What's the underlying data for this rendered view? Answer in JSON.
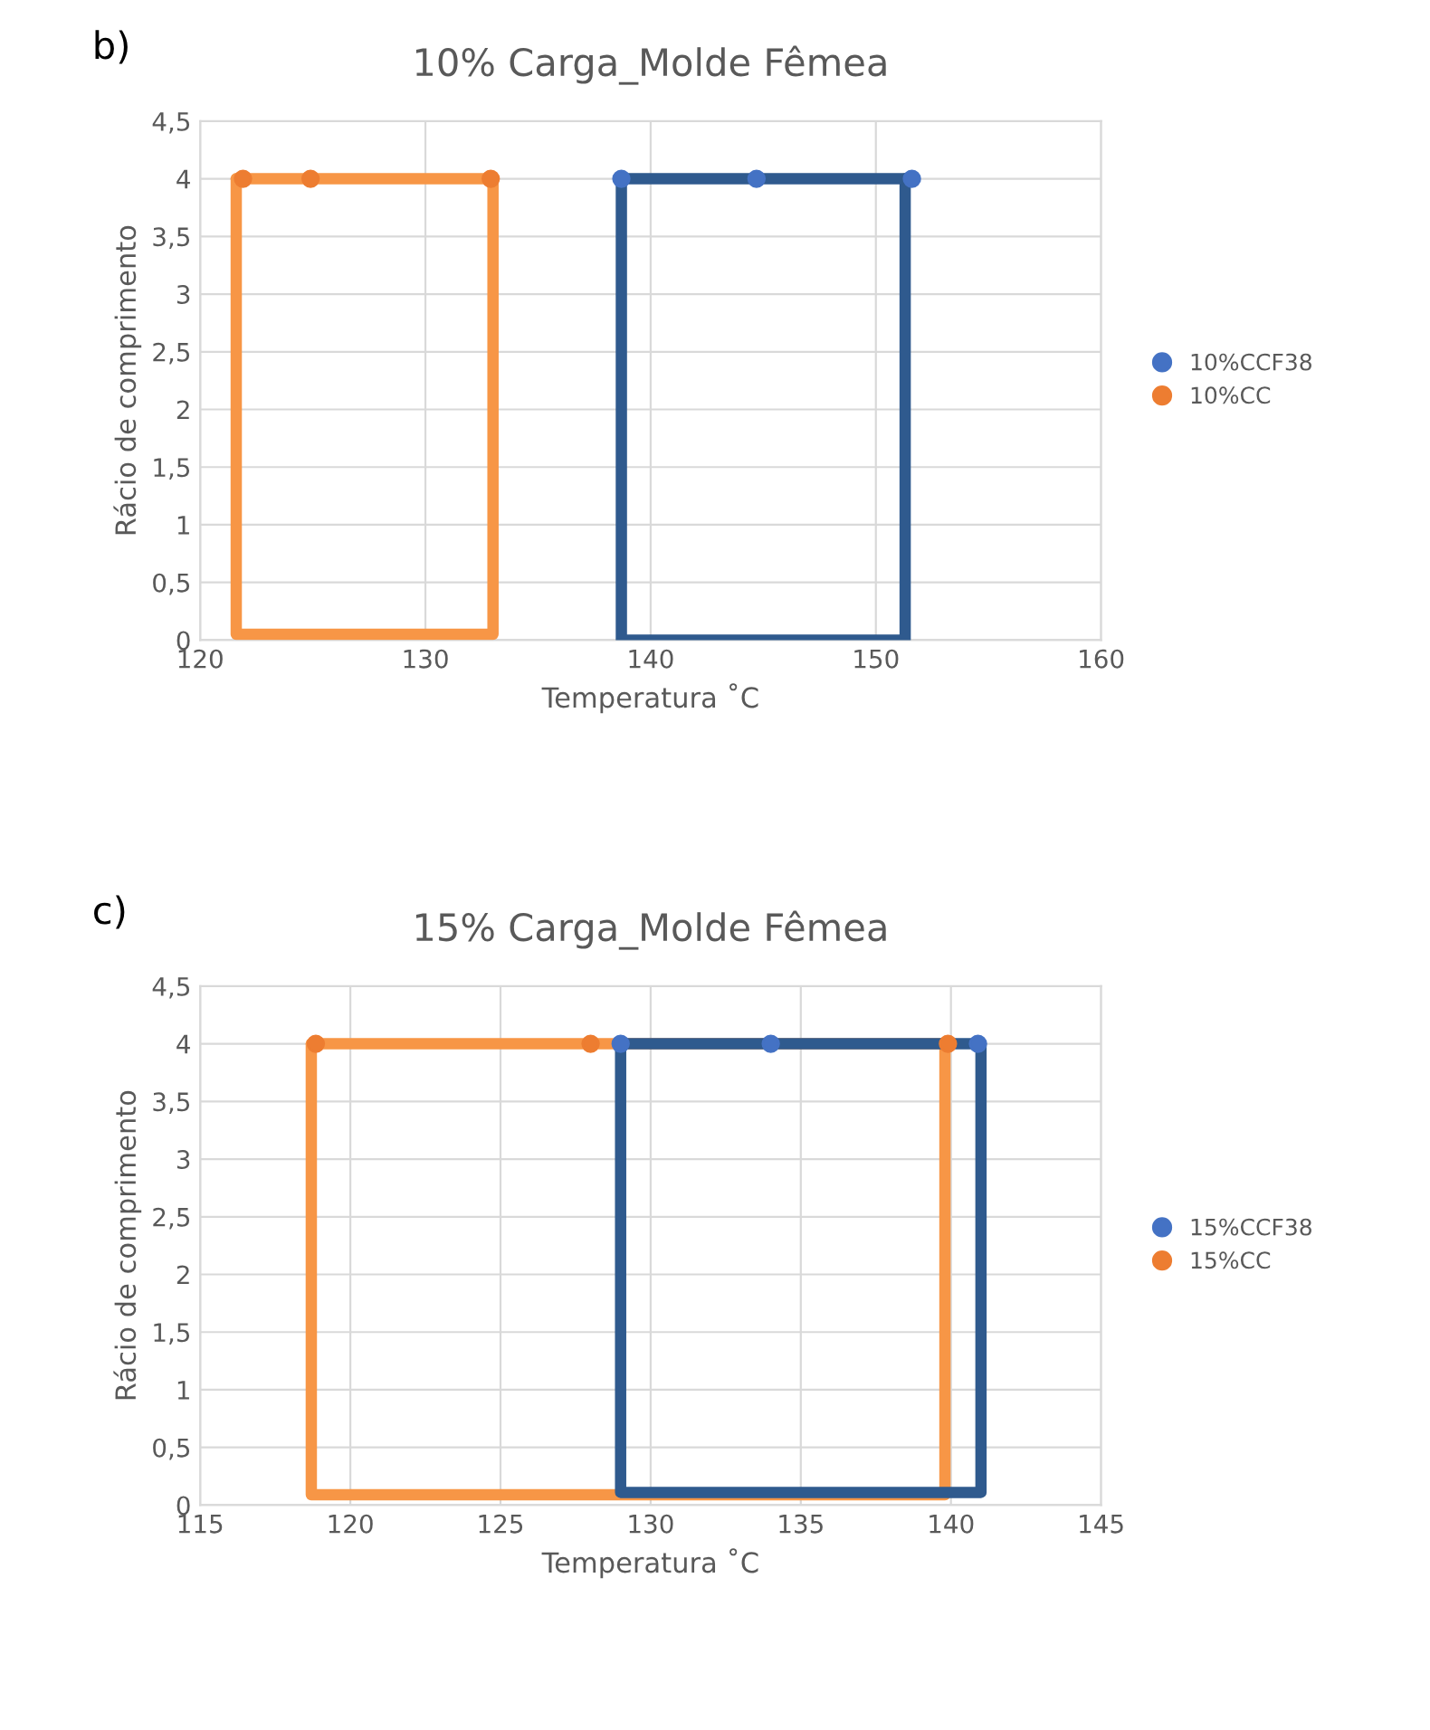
{
  "chart_data": [
    {
      "type": "scatter",
      "title": "10% Carga_Molde Fêmea",
      "xlabel": "Temperatura ˚C",
      "ylabel": "Rácio de comprimento",
      "annotations": [
        "b)"
      ],
      "xlim": [
        120,
        160
      ],
      "xticks": [
        120,
        130,
        140,
        150,
        160
      ],
      "ylim": [
        0,
        4.5
      ],
      "yticks": [
        {
          "value": 0,
          "label": "0"
        },
        {
          "value": 0.5,
          "label": "0,5"
        },
        {
          "value": 1,
          "label": "1"
        },
        {
          "value": 1.5,
          "label": "1,5"
        },
        {
          "value": 2,
          "label": "2"
        },
        {
          "value": 2.5,
          "label": "2,5"
        },
        {
          "value": 3,
          "label": "3"
        },
        {
          "value": 3.5,
          "label": "3,5"
        },
        {
          "value": 4,
          "label": "4"
        },
        {
          "value": 4.5,
          "label": "4,5"
        }
      ],
      "grid": true,
      "legend": "right",
      "marker": "circle",
      "series": [
        {
          "name": "10%CCF38",
          "color": "#4472c4",
          "x": [
            138.7,
            144.7,
            151.6
          ],
          "values": [
            4,
            4,
            4
          ]
        },
        {
          "name": "10%CC",
          "color": "#ed7d31",
          "x": [
            121.9,
            124.9,
            132.9
          ],
          "values": [
            4,
            4,
            4
          ]
        },
        {
          "type": "line",
          "marker": "none",
          "color": "#f79646",
          "x": [
            121.6,
            121.6,
            133.0,
            133.0
          ],
          "values": [
            4,
            0.05,
            0.05,
            4
          ]
        },
        {
          "type": "line",
          "marker": "none",
          "color": "#f79646",
          "x": [
            121.6,
            133.0
          ],
          "values": [
            4,
            4
          ]
        },
        {
          "type": "line",
          "marker": "none",
          "color": "#2f5a8e",
          "x": [
            138.7,
            138.7,
            151.3,
            151.3
          ],
          "values": [
            4,
            0,
            0,
            4
          ]
        },
        {
          "type": "line",
          "marker": "none",
          "color": "#2f5a8e",
          "x": [
            138.7,
            151.3
          ],
          "values": [
            4,
            4
          ]
        }
      ]
    },
    {
      "type": "scatter",
      "title": "15% Carga_Molde Fêmea",
      "xlabel": "Temperatura ˚C",
      "ylabel": "Rácio de comprimento",
      "annotations": [
        "c)"
      ],
      "xlim": [
        115,
        145
      ],
      "xticks": [
        115,
        120,
        125,
        130,
        135,
        140,
        145
      ],
      "ylim": [
        0,
        4.5
      ],
      "yticks": [
        {
          "value": 0,
          "label": "0"
        },
        {
          "value": 0.5,
          "label": "0,5"
        },
        {
          "value": 1,
          "label": "1"
        },
        {
          "value": 1.5,
          "label": "1,5"
        },
        {
          "value": 2,
          "label": "2"
        },
        {
          "value": 2.5,
          "label": "2,5"
        },
        {
          "value": 3,
          "label": "3"
        },
        {
          "value": 3.5,
          "label": "3,5"
        },
        {
          "value": 4,
          "label": "4"
        },
        {
          "value": 4.5,
          "label": "4,5"
        }
      ],
      "grid": true,
      "legend": "right",
      "marker": "circle",
      "series": [
        {
          "name": "15%CCF38",
          "color": "#4472c4",
          "x": [
            129.0,
            134.0,
            140.9
          ],
          "values": [
            4,
            4,
            4
          ]
        },
        {
          "name": "15%CC",
          "color": "#ed7d31",
          "x": [
            118.85,
            128.0,
            139.9
          ],
          "values": [
            4,
            4,
            4
          ]
        },
        {
          "type": "line",
          "marker": "none",
          "color": "#f79646",
          "x": [
            118.7,
            118.7,
            139.8,
            139.8
          ],
          "values": [
            4,
            0.09,
            0.09,
            4
          ]
        },
        {
          "type": "line",
          "marker": "none",
          "color": "#f79646",
          "x": [
            118.7,
            139.8
          ],
          "values": [
            4,
            4
          ]
        },
        {
          "type": "line",
          "marker": "none",
          "color": "#2f5a8e",
          "x": [
            129.0,
            129.0,
            141.0,
            141.0
          ],
          "values": [
            4,
            0.11,
            0.11,
            4
          ]
        },
        {
          "type": "line",
          "marker": "none",
          "color": "#2f5a8e",
          "x": [
            129.0,
            141.0
          ],
          "values": [
            4,
            4
          ]
        }
      ]
    }
  ]
}
